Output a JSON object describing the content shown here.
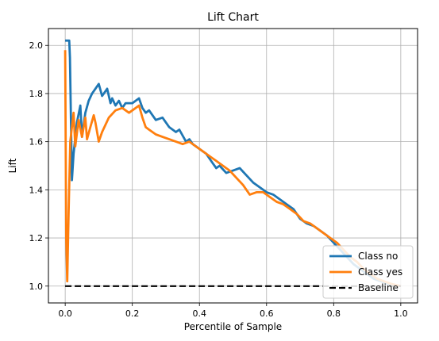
{
  "chart_data": {
    "type": "line",
    "title": "Lift Chart",
    "xlabel": "Percentile of Sample",
    "ylabel": "Lift",
    "xlim": [
      -0.05,
      1.05
    ],
    "ylim": [
      0.93,
      2.07
    ],
    "xticks": [
      0.0,
      0.2,
      0.4,
      0.6,
      0.8,
      1.0
    ],
    "xtick_labels": [
      "0.0",
      "0.2",
      "0.4",
      "0.6",
      "0.8",
      "1.0"
    ],
    "yticks": [
      1.0,
      1.2,
      1.4,
      1.6,
      1.8,
      2.0
    ],
    "ytick_labels": [
      "1.0",
      "1.2",
      "1.4",
      "1.6",
      "1.8",
      "2.0"
    ],
    "grid": true,
    "legend_position": "lower-right",
    "series": [
      {
        "name": "Class no",
        "color": "#1f77b4",
        "style": "solid",
        "x": [
          0.0,
          0.012,
          0.014,
          0.02,
          0.025,
          0.035,
          0.045,
          0.05,
          0.06,
          0.07,
          0.08,
          0.09,
          0.1,
          0.11,
          0.115,
          0.125,
          0.135,
          0.14,
          0.15,
          0.16,
          0.17,
          0.18,
          0.2,
          0.22,
          0.23,
          0.24,
          0.25,
          0.27,
          0.29,
          0.31,
          0.33,
          0.34,
          0.36,
          0.37,
          0.38,
          0.39,
          0.4,
          0.42,
          0.44,
          0.45,
          0.46,
          0.48,
          0.5,
          0.52,
          0.54,
          0.56,
          0.58,
          0.6,
          0.62,
          0.64,
          0.66,
          0.68,
          0.7,
          0.72,
          0.74,
          0.76,
          0.78,
          0.8,
          0.82,
          0.84,
          0.86,
          0.88,
          0.9,
          0.92,
          0.94,
          0.96,
          0.98,
          1.0
        ],
        "y": [
          2.02,
          2.02,
          1.95,
          1.44,
          1.55,
          1.68,
          1.75,
          1.62,
          1.72,
          1.77,
          1.8,
          1.82,
          1.84,
          1.79,
          1.8,
          1.82,
          1.76,
          1.78,
          1.75,
          1.77,
          1.74,
          1.76,
          1.76,
          1.78,
          1.74,
          1.72,
          1.73,
          1.69,
          1.7,
          1.66,
          1.64,
          1.65,
          1.6,
          1.61,
          1.59,
          1.58,
          1.57,
          1.55,
          1.51,
          1.49,
          1.5,
          1.47,
          1.48,
          1.49,
          1.46,
          1.43,
          1.41,
          1.39,
          1.38,
          1.36,
          1.34,
          1.32,
          1.28,
          1.26,
          1.25,
          1.23,
          1.21,
          1.18,
          1.15,
          1.12,
          1.09,
          1.07,
          1.05,
          1.03,
          1.02,
          1.01,
          1.005,
          1.0
        ]
      },
      {
        "name": "Class yes",
        "color": "#ff7f0e",
        "style": "solid",
        "x": [
          0.0,
          0.003,
          0.006,
          0.01,
          0.015,
          0.025,
          0.03,
          0.04,
          0.05,
          0.06,
          0.065,
          0.075,
          0.085,
          0.09,
          0.1,
          0.11,
          0.13,
          0.15,
          0.17,
          0.19,
          0.21,
          0.22,
          0.23,
          0.24,
          0.25,
          0.27,
          0.29,
          0.31,
          0.33,
          0.35,
          0.37,
          0.39,
          0.41,
          0.43,
          0.45,
          0.47,
          0.49,
          0.51,
          0.53,
          0.55,
          0.57,
          0.59,
          0.61,
          0.63,
          0.65,
          0.67,
          0.69,
          0.71,
          0.73,
          0.75,
          0.77,
          0.79,
          0.81,
          0.83,
          0.85,
          0.87,
          0.89,
          0.91,
          0.93,
          0.95,
          0.97,
          1.0
        ],
        "y": [
          1.98,
          1.2,
          1.02,
          1.3,
          1.6,
          1.72,
          1.58,
          1.69,
          1.62,
          1.7,
          1.61,
          1.66,
          1.71,
          1.68,
          1.6,
          1.64,
          1.7,
          1.73,
          1.74,
          1.72,
          1.74,
          1.75,
          1.7,
          1.66,
          1.65,
          1.63,
          1.62,
          1.61,
          1.6,
          1.59,
          1.6,
          1.58,
          1.56,
          1.54,
          1.52,
          1.5,
          1.48,
          1.45,
          1.42,
          1.38,
          1.39,
          1.39,
          1.37,
          1.35,
          1.34,
          1.32,
          1.3,
          1.27,
          1.26,
          1.24,
          1.22,
          1.2,
          1.18,
          1.15,
          1.12,
          1.1,
          1.07,
          1.05,
          1.03,
          1.02,
          1.01,
          1.0
        ]
      },
      {
        "name": "Baseline",
        "color": "#000000",
        "style": "dashed",
        "x": [
          0.0,
          1.0
        ],
        "y": [
          1.0,
          1.0
        ]
      }
    ]
  }
}
